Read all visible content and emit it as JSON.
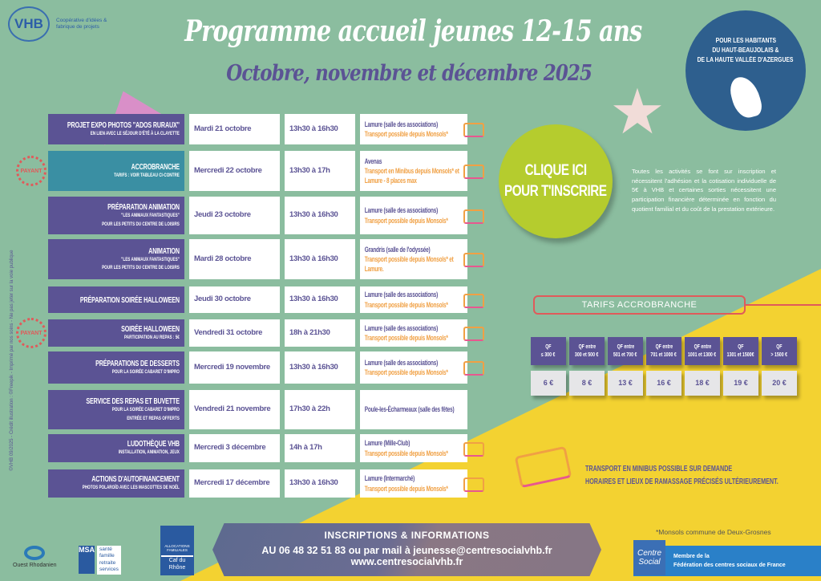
{
  "logo": {
    "name": "VHB",
    "tagline": "Coopérative d'idées & fabrique de projets"
  },
  "title": "Programme accueil jeunes 12-15 ans",
  "subtitle": "Octobre, novembre et décembre 2025",
  "audience": {
    "line1": "POUR LES HABITANTS",
    "line2": "DU HAUT-BEAUJOLAIS &",
    "line3": "DE LA HAUTE VALLÉE D'AZERGUES"
  },
  "credit": "©VHB 09/2025 - Crédit illustration : ©Freepik - Imprimé par nos soins - Ne pas jeter sur la voie publique",
  "badge_label": "PAYANT",
  "activities": [
    {
      "name": "PROJET EXPO PHOTOS \"ADOS RURAUX\"",
      "sub": [
        "EN LIEN AVEC LE SÉJOUR D'ÉTÉ À LA CLAYETTE"
      ],
      "date": "Mardi 21 octobre",
      "time": "13h30 à 16h30",
      "place": "Lamure (salle des associations)",
      "transport": "Transport possible depuis Monsols*"
    },
    {
      "name": "ACCROBRANCHE",
      "sub": [
        "TARIFS : VOIR TABLEAU CI-CONTRE"
      ],
      "date": "Mercredi 22 octobre",
      "time": "13h30 à 17h",
      "place": "Avenas",
      "transport": "Transport en Minibus depuis Monsols* et Lamure - 8 places max",
      "paid": true
    },
    {
      "name": "PRÉPARATION ANIMATION",
      "sub": [
        "\"LES ANIMAUX FANTASTIQUES\"",
        "POUR LES PETITS DU CENTRE DE LOISIRS"
      ],
      "date": "Jeudi 23 octobre",
      "time": "13h30 à 16h30",
      "place": "Lamure (salle des associations)",
      "transport": "Transport possible depuis Monsols*"
    },
    {
      "name": "ANIMATION",
      "sub": [
        "\"LES ANIMAUX FANTASTIQUES\"",
        "POUR LES PETITS DU CENTRE DE LOISIRS"
      ],
      "date": "Mardi 28 octobre",
      "time": "13h30 à 16h30",
      "place": "Grandris (salle de l'odyssée)",
      "transport": "Transport possible depuis Monsols* et Lamure."
    },
    {
      "name": "PRÉPARATION SOIRÉE HALLOWEEN",
      "sub": [],
      "date": "Jeudi 30 octobre",
      "time": "13h30 à 16h30",
      "place": "Lamure (salle des associations)",
      "transport": "Transport possible depuis Monsols*"
    },
    {
      "name": "SOIRÉE HALLOWEEN",
      "sub": [
        "PARTICIPATION AU REPAS : 5€"
      ],
      "date": "Vendredi 31 octobre",
      "time": "18h à 21h30",
      "place": "Lamure (salle des associations)",
      "transport": "Transport possible depuis Monsols*",
      "paid": true
    },
    {
      "name": "PRÉPARATIONS DE DESSERTS",
      "sub": [
        "POUR LA SOIRÉE CABARET D'IMPRO"
      ],
      "date": "Mercredi 19 novembre",
      "time": "13h30 à 16h30",
      "place": "Lamure (salle des associations)",
      "transport": "Transport possible depuis Monsols*"
    },
    {
      "name": "SERVICE DES REPAS ET BUVETTE",
      "sub": [
        "POUR LA SOIRÉE CABARET D'IMPRO",
        "ENTRÉE ET REPAS OFFERTS"
      ],
      "date": "Vendredi 21 novembre",
      "time": "17h30 à 22h",
      "place": "Poule-les-Écharmeaux (salle des fêtes)",
      "transport": ""
    },
    {
      "name": "LUDOTHÈQUE VHB",
      "sub": [
        "INSTALLATION, ANIMATION, JEUX"
      ],
      "date": "Mercredi 3 décembre",
      "time": "14h à 17h",
      "place": "Lamure (Mille-Club)",
      "transport": "Transport possible depuis Monsols*"
    },
    {
      "name": "ACTIONS D'AUTOFINANCEMENT",
      "sub": [
        "PHOTOS POLAROÏD AVEC LES MASCOTTES DE NOËL"
      ],
      "date": "Mercredi 17 décembre",
      "time": "13h30 à 16h30",
      "place": "Lamure (Intermarché)",
      "transport": "Transport possible depuis Monsols*"
    }
  ],
  "cta": {
    "line1": "CLIQUE ICI",
    "line2": "POUR T'INSCRIRE"
  },
  "info": "Toutes les activités se font sur inscription et nécessitent l'adhésion et la cotisation individuelle de 5€ à VHB et certaines sorties nécessitent une participation financière déterminée en fonction du quotient familial et du coût de la prestation extérieure.",
  "tarifs": {
    "title": "TARIFS ACCROBRANCHE",
    "headers": [
      [
        "QF",
        "≤ 300 €"
      ],
      [
        "QF entre",
        "300 et 500 €"
      ],
      [
        "QF entre",
        "501 et 700 €"
      ],
      [
        "QF entre",
        "701 et 1000 €"
      ],
      [
        "QF entre",
        "1001 et 1300 €"
      ],
      [
        "QF",
        "1301 et 1500€"
      ],
      [
        "QF",
        "> 1500 €"
      ]
    ],
    "prices": [
      "6 €",
      "8 €",
      "13 €",
      "16 €",
      "18 €",
      "19 €",
      "20 €"
    ]
  },
  "transport_note": {
    "line1": "TRANSPORT EN MINIBUS POSSIBLE SUR DEMANDE",
    "line2": "HORAIRES ET LIEUX DE RAMASSAGE PRÉCISÉS ULTÉRIEUREMENT."
  },
  "contact": {
    "heading": "INSCRIPTIONS & INFORMATIONS",
    "phone_mail": "AU 06 48 32 51 83 ou par mail à jeunesse@centresocialvhb.fr",
    "website": "www.centresocialvhb.fr"
  },
  "footnote": "*Monsols commune de Deux-Grosnes",
  "federation": {
    "logo": "Centre Social",
    "line1": "Membre de la",
    "line2": "Fédération des centres sociaux de France"
  },
  "partners": {
    "ouest": "Ouest Rhodanien",
    "msa": [
      "santé",
      "famille",
      "retraite",
      "services"
    ],
    "msa_logo": "MSA",
    "caf_top": "ALLOCATIONS FAMILIALES",
    "caf": "Caf du Rhône"
  },
  "colors": {
    "background": "#8bbd9f",
    "purple": "#5b5394",
    "teal": "#3a8fa3",
    "yellow": "#f3d231",
    "lime": "#b5cc2e",
    "blue": "#2e5f8e",
    "orange": "#f0a044",
    "red": "#e05a5a"
  }
}
